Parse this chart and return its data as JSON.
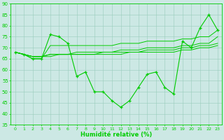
{
  "x": [
    0,
    1,
    2,
    3,
    4,
    5,
    6,
    7,
    8,
    9,
    10,
    11,
    12,
    13,
    14,
    15,
    16,
    17,
    18,
    19,
    20,
    21,
    22,
    23
  ],
  "y_main": [
    68,
    67,
    65,
    65,
    76,
    75,
    72,
    57,
    59,
    50,
    50,
    46,
    43,
    46,
    52,
    58,
    59,
    52,
    49,
    73,
    70,
    79,
    85,
    78
  ],
  "trend_lines": [
    [
      68,
      67,
      65,
      65,
      71,
      71,
      71,
      71,
      71,
      71,
      71,
      71,
      72,
      72,
      72,
      73,
      73,
      73,
      73,
      74,
      74,
      75,
      75,
      78
    ],
    [
      68,
      67,
      66,
      66,
      67,
      67,
      67,
      68,
      68,
      68,
      68,
      68,
      69,
      69,
      69,
      70,
      70,
      70,
      70,
      71,
      71,
      72,
      72,
      75
    ],
    [
      68,
      67,
      66,
      66,
      67,
      67,
      67,
      67,
      67,
      67,
      68,
      68,
      68,
      68,
      68,
      69,
      69,
      69,
      69,
      70,
      70,
      71,
      71,
      72
    ],
    [
      68,
      67,
      66,
      66,
      66,
      67,
      67,
      67,
      67,
      67,
      67,
      67,
      67,
      68,
      68,
      68,
      68,
      68,
      68,
      69,
      69,
      70,
      70,
      71
    ]
  ],
  "line_color": "#00cc00",
  "bg_color": "#cce8e4",
  "grid_color": "#99ccbb",
  "xlabel": "Humidité relative (%)",
  "ylim": [
    35,
    90
  ],
  "yticks": [
    35,
    40,
    45,
    50,
    55,
    60,
    65,
    70,
    75,
    80,
    85,
    90
  ],
  "xlim": [
    -0.5,
    23.5
  ]
}
